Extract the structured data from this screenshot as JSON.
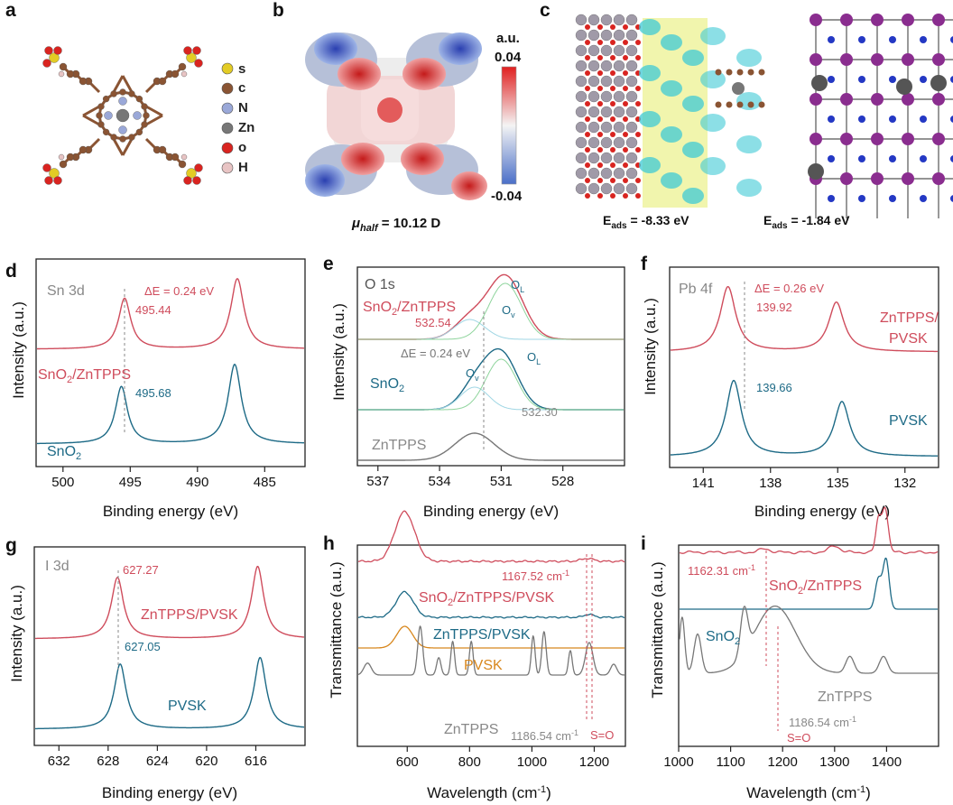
{
  "colors": {
    "red": "#cf4c5c",
    "teal": "#1d6a86",
    "orange": "#d8871d",
    "gray": "#777777",
    "ov": "#9fd6e4",
    "ol": "#8ed49c"
  },
  "panel_labels": {
    "a": "a",
    "b": "b",
    "c": "c",
    "d": "d",
    "e": "e",
    "f": "f",
    "g": "g",
    "h": "h",
    "i": "i"
  },
  "panel_a": {
    "legend": [
      "s",
      "c",
      "N",
      "Zn",
      "o",
      "H"
    ],
    "legend_colors": [
      "#e3cc25",
      "#8a5433",
      "#9aa8d8",
      "#777777",
      "#d92420",
      "#e8c4c4"
    ]
  },
  "panel_b": {
    "unit": "a.u.",
    "max": "0.04",
    "min": "-0.04",
    "dipole_sym": "μ",
    "dipole_sub": "half",
    "dipole_val": " = 10.12 D"
  },
  "panel_c": {
    "e_sym": "E",
    "e_sub": "ads",
    "e1_val": " = -8.33 eV",
    "e2_val": " = -1.84 eV"
  },
  "chart_data": [
    {
      "panel": "d",
      "type": "line",
      "xlabel": "Binding energy (eV)",
      "ylabel": "Intensity (a.u.)",
      "xlim": [
        502,
        482
      ],
      "xticks": [
        "500",
        "495",
        "490",
        "485"
      ],
      "title": "Sn 3d",
      "annotations": {
        "delta": "ΔE = 0.24 eV",
        "peak1": "495.44",
        "peak2": "495.68"
      },
      "series": [
        {
          "name": "SnO2/ZnTPPS",
          "name_main": "SnO",
          "name_sub": "2",
          "name_rest": "/ZnTPPS",
          "peaks": [
            495.44,
            487.0
          ]
        },
        {
          "name": "SnO2",
          "name_main": "SnO",
          "name_sub": "2",
          "peaks": [
            495.68,
            487.2
          ]
        }
      ]
    },
    {
      "panel": "e",
      "type": "line",
      "xlabel": "Binding energy (eV)",
      "ylabel": "Intensity (a.u.)",
      "xlim": [
        538,
        525
      ],
      "xticks": [
        "537",
        "534",
        "531",
        "528"
      ],
      "title": "O 1s",
      "annotations": {
        "delta": "ΔE = 0.24 eV",
        "peak1": "532.54",
        "peak2": "532.30",
        "ol": "O",
        "ol_sub": "L",
        "ov": "O",
        "ov_sub": "v"
      },
      "series": [
        {
          "name": "SnO2/ZnTPPS",
          "name_main": "SnO",
          "name_sub": "2",
          "name_rest": "/ZnTPPS"
        },
        {
          "name": "SnO2",
          "name_main": "SnO",
          "name_sub": "2"
        },
        {
          "name": "ZnTPPS"
        }
      ]
    },
    {
      "panel": "f",
      "type": "line",
      "xlabel": "Binding energy (eV)",
      "ylabel": "Intensity (a.u.)",
      "xlim": [
        142.5,
        130.5
      ],
      "xticks": [
        "141",
        "138",
        "135",
        "132"
      ],
      "title": "Pb 4f",
      "annotations": {
        "delta": "ΔE = 0.26 eV",
        "peak1": "139.92",
        "peak2": "139.66"
      },
      "series": [
        {
          "name": "ZnTPPS/ PVSK",
          "line1": "ZnTPPS/",
          "line2": "PVSK",
          "peaks": [
            139.92,
            135.05
          ]
        },
        {
          "name": "PVSK",
          "peaks": [
            139.66,
            134.8
          ]
        }
      ]
    },
    {
      "panel": "g",
      "type": "line",
      "xlabel": "Binding energy (eV)",
      "ylabel": "Intensity (a.u.)",
      "xlim": [
        634,
        612
      ],
      "xticks": [
        "632",
        "628",
        "624",
        "620",
        "616"
      ],
      "title": "I 3d",
      "annotations": {
        "peak1": "627.27",
        "peak2": "627.05"
      },
      "series": [
        {
          "name": "ZnTPPS/PVSK",
          "peaks": [
            627.27,
            615.8
          ]
        },
        {
          "name": "PVSK",
          "peaks": [
            627.05,
            615.6
          ]
        }
      ]
    },
    {
      "panel": "h",
      "type": "line",
      "xlabel": "Wavelength (cm",
      "xlabel_sup": "-1",
      "xlabel_end": ")",
      "ylabel": "Transmittance (a.u.)",
      "xlim": [
        440,
        1300
      ],
      "xticks": [
        "600",
        "800",
        "1000",
        "1200"
      ],
      "annotations": {
        "wn1": "1167.52 cm",
        "wn1_sup": "-1",
        "wn2": "1186.54 cm",
        "wn2_sup": "-1",
        "so": "S=O"
      },
      "series": [
        {
          "name": "SnO2/ZnTPPS/PVSK",
          "name_main": "SnO",
          "name_sub": "2",
          "name_rest": "/ZnTPPS/PVSK"
        },
        {
          "name": "ZnTPPS/PVSK"
        },
        {
          "name": "PVSK"
        },
        {
          "name": "ZnTPPS"
        }
      ]
    },
    {
      "panel": "i",
      "type": "line",
      "xlabel": "Wavelength (cm",
      "xlabel_sup": "-1",
      "xlabel_end": ")",
      "ylabel": "Transmittance (a.u.)",
      "xlim": [
        1000,
        1500
      ],
      "xticks": [
        "1000",
        "1100",
        "1200",
        "1300",
        "1400"
      ],
      "annotations": {
        "wn1": "1162.31 cm",
        "wn1_sup": "-1",
        "wn2": "1186.54 cm",
        "wn2_sup": "-1",
        "so": "S=O"
      },
      "series": [
        {
          "name": "SnO2/ZnTPPS",
          "name_main": "SnO",
          "name_sub": "2",
          "name_rest": "/ZnTPPS"
        },
        {
          "name": "SnO2",
          "name_main": "SnO",
          "name_sub": "2"
        },
        {
          "name": "ZnTPPS"
        }
      ]
    }
  ]
}
